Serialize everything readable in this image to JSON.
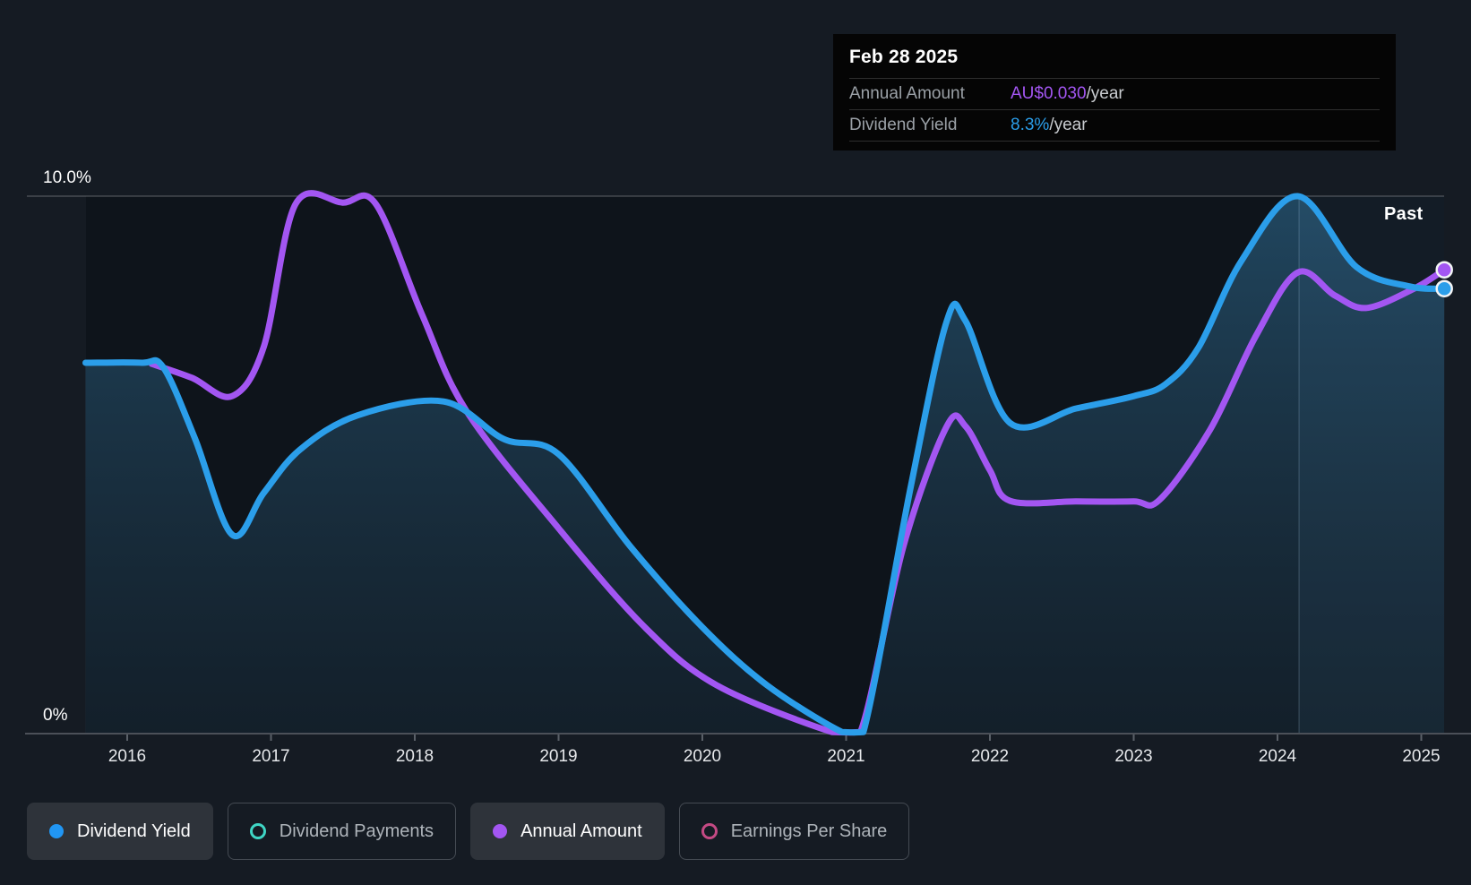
{
  "tooltip": {
    "date": "Feb 28 2025",
    "rows": [
      {
        "label": "Annual Amount",
        "value": "AU$0.030",
        "suffix": "/year",
        "color": "#A356F2"
      },
      {
        "label": "Dividend Yield",
        "value": "8.3%",
        "suffix": "/year",
        "color": "#2B9EEA"
      }
    ]
  },
  "annotations": {
    "past_label": "Past"
  },
  "legend": {
    "items": [
      {
        "label": "Dividend Yield",
        "marker": "filled",
        "color": "#2196F3",
        "active": true
      },
      {
        "label": "Dividend Payments",
        "marker": "ring",
        "color": "#3FD6C5",
        "active": false
      },
      {
        "label": "Annual Amount",
        "marker": "filled",
        "color": "#A356F2",
        "active": true
      },
      {
        "label": "Earnings Per Share",
        "marker": "ring",
        "color": "#C44A84",
        "active": false
      }
    ]
  },
  "colors": {
    "page_bg": "#151B23",
    "plot_bg": "#0E141B",
    "area_top": "rgba(58,140,190,0.42)",
    "area_bottom": "rgba(45,90,120,0.16)",
    "past_band": "rgba(110,175,230,0.055)",
    "gridline_major": "rgba(255,255,255,0.22)",
    "gridline_minor": "rgba(255,255,255,0.10)",
    "baseline": "#4B5058",
    "tick": "#5A6068",
    "divider": "rgba(170,205,235,0.18)",
    "axis_label": "#E6E8EB",
    "y_label": "#FFFFFF",
    "marker_stroke": "#F2F4F6"
  },
  "chart_data": {
    "type": "line",
    "title": "Dividend history (yield % and annual amount)",
    "grid": "horizontal-only",
    "legend_position": "bottom-left",
    "x_axis": {
      "ticks": [
        2016,
        2017,
        2018,
        2019,
        2020,
        2021,
        2022,
        2023,
        2024,
        2025
      ],
      "data_start": 2015.71,
      "data_end": 2025.16
    },
    "y_axis": {
      "min": 0,
      "max": 10,
      "labels": [
        {
          "text": "10.0%",
          "value": 10
        },
        {
          "text": "0%",
          "value": 0
        }
      ]
    },
    "divider": {
      "year": 2024.15,
      "label": "Past"
    },
    "series": [
      {
        "name": "Dividend Yield",
        "color": "#2B9EEA",
        "unit": "%",
        "area_fill": true,
        "end_value": "8.3%/year",
        "points": [
          [
            2015.71,
            6.9
          ],
          [
            2016.1,
            6.9
          ],
          [
            2016.25,
            6.82
          ],
          [
            2016.47,
            5.5
          ],
          [
            2016.73,
            3.7
          ],
          [
            2016.95,
            4.48
          ],
          [
            2017.2,
            5.28
          ],
          [
            2017.6,
            5.92
          ],
          [
            2018.2,
            6.18
          ],
          [
            2018.62,
            5.48
          ],
          [
            2019.0,
            5.2
          ],
          [
            2019.5,
            3.48
          ],
          [
            2020.0,
            1.98
          ],
          [
            2020.45,
            0.9
          ],
          [
            2020.97,
            0.03
          ],
          [
            2021.12,
            0.03
          ],
          [
            2021.45,
            4.6
          ],
          [
            2021.7,
            7.68
          ],
          [
            2021.83,
            7.68
          ],
          [
            2022.14,
            5.78
          ],
          [
            2022.6,
            6.05
          ],
          [
            2023.0,
            6.28
          ],
          [
            2023.22,
            6.5
          ],
          [
            2023.45,
            7.18
          ],
          [
            2023.75,
            8.8
          ],
          [
            2024.14,
            10.0
          ],
          [
            2024.55,
            8.68
          ],
          [
            2024.92,
            8.32
          ],
          [
            2025.16,
            8.28
          ]
        ]
      },
      {
        "name": "Annual Amount",
        "color": "#A356F2",
        "unit": "AU$ per share (own scale, overlaid on % axis)",
        "end_value": "AU$0.030/year",
        "area_fill": false,
        "points": [
          [
            2016.17,
            6.88
          ],
          [
            2016.45,
            6.62
          ],
          [
            2016.73,
            6.28
          ],
          [
            2016.95,
            7.2
          ],
          [
            2017.17,
            9.85
          ],
          [
            2017.5,
            9.88
          ],
          [
            2017.73,
            9.85
          ],
          [
            2018.05,
            7.8
          ],
          [
            2018.36,
            6.0
          ],
          [
            2019.0,
            3.82
          ],
          [
            2019.6,
            1.98
          ],
          [
            2020.1,
            0.9
          ],
          [
            2020.9,
            0.03
          ],
          [
            2021.1,
            0.03
          ],
          [
            2021.4,
            3.5
          ],
          [
            2021.7,
            5.72
          ],
          [
            2021.83,
            5.72
          ],
          [
            2022.0,
            4.9
          ],
          [
            2022.14,
            4.33
          ],
          [
            2022.6,
            4.32
          ],
          [
            2023.0,
            4.32
          ],
          [
            2023.18,
            4.35
          ],
          [
            2023.53,
            5.65
          ],
          [
            2023.85,
            7.4
          ],
          [
            2024.14,
            8.58
          ],
          [
            2024.4,
            8.15
          ],
          [
            2024.62,
            7.92
          ],
          [
            2024.95,
            8.28
          ],
          [
            2025.16,
            8.63
          ]
        ]
      }
    ],
    "end_markers": [
      {
        "series": "Annual Amount",
        "color": "#A356F2",
        "year": 2025.16,
        "value_pct": 8.63
      },
      {
        "series": "Dividend Yield",
        "color": "#2B9EEA",
        "year": 2025.16,
        "value_pct": 8.28
      }
    ]
  }
}
